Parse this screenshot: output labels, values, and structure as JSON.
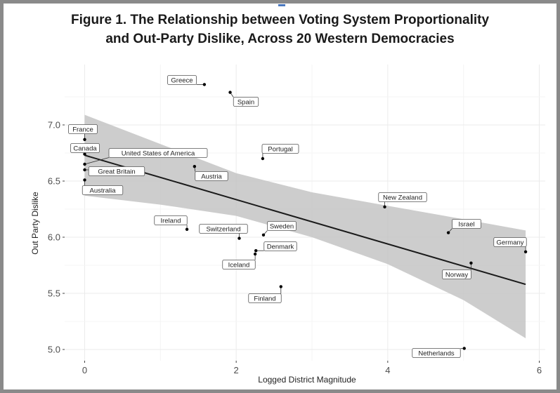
{
  "title_line1": "Figure 1. The Relationship between Voting System Proportionality",
  "title_line2": "and Out-Party Dislike, Across 20 Western Democracies",
  "chart_data": {
    "type": "scatter",
    "xlabel": "Logged District Magnitude",
    "ylabel": "Out Party Dislike",
    "xlim": [
      -0.3,
      5.95
    ],
    "ylim": [
      4.95,
      7.5
    ],
    "x_ticks": [
      0,
      2,
      4,
      6
    ],
    "x_tick_labels": [
      "0",
      "2",
      "4",
      "6"
    ],
    "y_ticks": [
      5.0,
      5.5,
      6.0,
      6.5,
      7.0
    ],
    "y_tick_labels": [
      "5.0",
      "5.5",
      "6.0",
      "6.5",
      "7.0"
    ],
    "grid": true,
    "points": [
      {
        "label": "Greece",
        "x": 1.58,
        "y": 7.36
      },
      {
        "label": "Spain",
        "x": 1.92,
        "y": 7.29
      },
      {
        "label": "France",
        "x": 0.0,
        "y": 6.87
      },
      {
        "label": "Canada",
        "x": 0.0,
        "y": 6.74
      },
      {
        "label": "United States of America",
        "x": 0.0,
        "y": 6.65
      },
      {
        "label": "Great Britain",
        "x": 0.0,
        "y": 6.6
      },
      {
        "label": "Australia",
        "x": 0.0,
        "y": 6.51
      },
      {
        "label": "Portugal",
        "x": 2.35,
        "y": 6.7
      },
      {
        "label": "Austria",
        "x": 1.45,
        "y": 6.63
      },
      {
        "label": "New Zealand",
        "x": 3.96,
        "y": 6.27
      },
      {
        "label": "Ireland",
        "x": 1.35,
        "y": 6.07
      },
      {
        "label": "Switzerland",
        "x": 2.04,
        "y": 5.99
      },
      {
        "label": "Sweden",
        "x": 2.36,
        "y": 6.02
      },
      {
        "label": "Denmark",
        "x": 2.26,
        "y": 5.88
      },
      {
        "label": "Iceland",
        "x": 2.25,
        "y": 5.85
      },
      {
        "label": "Finland",
        "x": 2.59,
        "y": 5.56
      },
      {
        "label": "Israel",
        "x": 4.8,
        "y": 6.04
      },
      {
        "label": "Germany",
        "x": 5.82,
        "y": 5.87
      },
      {
        "label": "Norway",
        "x": 5.1,
        "y": 5.77
      },
      {
        "label": "Netherlands",
        "x": 5.01,
        "y": 5.01
      }
    ],
    "fit_line": {
      "x": [
        0.0,
        5.82
      ],
      "y": [
        6.73,
        5.58
      ]
    },
    "confidence_band": {
      "x": [
        0.0,
        1.0,
        2.0,
        3.0,
        4.0,
        5.0,
        5.82
      ],
      "upper": [
        7.09,
        6.83,
        6.57,
        6.4,
        6.28,
        6.16,
        6.06
      ],
      "lower": [
        6.37,
        6.29,
        6.19,
        6.0,
        5.76,
        5.44,
        5.1
      ]
    },
    "colors": {
      "points": "#000000",
      "fit_line": "#1a1a1a",
      "band": "#c4c4c4",
      "grid": "#ebebeb",
      "label_border": "#555555"
    }
  }
}
